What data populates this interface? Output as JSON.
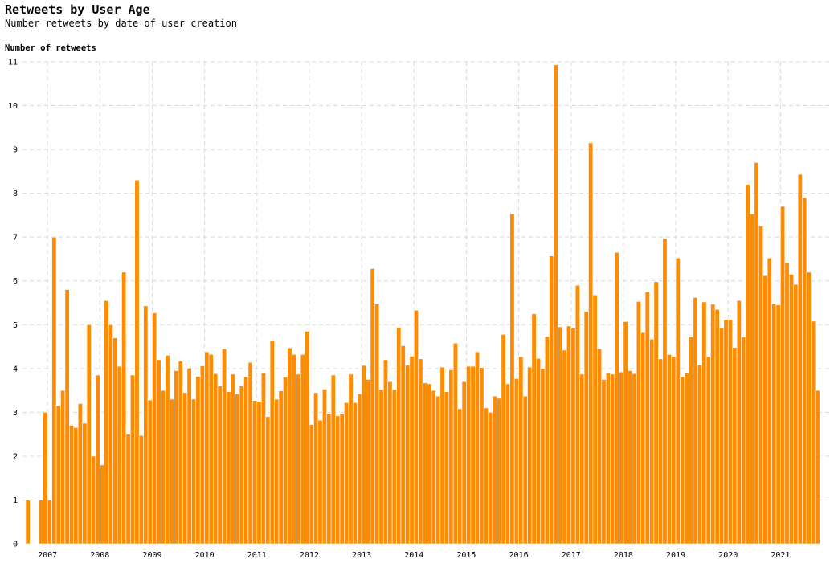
{
  "chart_data": {
    "type": "bar",
    "title": "Retweets by User Age",
    "subtitle": "Number retweets by date of user creation",
    "ylabel": "Number of retweets",
    "xlabel": "",
    "ylim": [
      0,
      11
    ],
    "yticks": [
      "0",
      "1",
      "2",
      "3",
      "4",
      "5",
      "6",
      "7",
      "8",
      "9",
      "10",
      "11"
    ],
    "xticks": [
      "2007",
      "2008",
      "2009",
      "2010",
      "2011",
      "2012",
      "2013",
      "2014",
      "2015",
      "2016",
      "2017",
      "2018",
      "2019",
      "2020",
      "2021"
    ],
    "grid": true,
    "bar_color": "#ff8c00",
    "x_start": "2006-08",
    "x_unit": "month",
    "values": [
      1,
      0,
      0,
      1,
      3,
      1,
      7,
      3.15,
      3.5,
      5.8,
      2.7,
      2.65,
      3.2,
      2.75,
      5,
      2,
      3.85,
      1.8,
      5.55,
      5,
      4.7,
      4.05,
      6.2,
      2.5,
      3.85,
      8.3,
      2.47,
      5.43,
      3.28,
      5.27,
      4.2,
      3.5,
      4.3,
      3.3,
      3.95,
      4.17,
      3.45,
      4.01,
      3.3,
      3.82,
      4.06,
      4.38,
      4.32,
      3.88,
      3.6,
      4.45,
      3.47,
      3.87,
      3.42,
      3.6,
      3.82,
      4.14,
      3.27,
      3.25,
      3.9,
      2.9,
      4.64,
      3.3,
      3.49,
      3.8,
      4.47,
      4.32,
      3.87,
      4.32,
      4.85,
      2.72,
      3.45,
      2.82,
      3.53,
      2.97,
      3.85,
      2.92,
      2.97,
      3.22,
      3.87,
      3.22,
      3.42,
      4.07,
      3.75,
      6.28,
      5.47,
      3.52,
      4.2,
      3.7,
      3.52,
      4.94,
      4.52,
      4.08,
      4.28,
      5.33,
      4.22,
      3.67,
      3.65,
      3.5,
      3.37,
      4.03,
      3.47,
      3.97,
      4.58,
      3.08,
      3.7,
      4.05,
      4.05,
      4.38,
      4.02,
      3.1,
      3.0,
      3.37,
      3.32,
      4.78,
      3.65,
      7.53,
      3.77,
      4.27,
      3.37,
      4.03,
      5.25,
      4.23,
      4.0,
      4.73,
      6.57,
      10.93,
      4.95,
      4.42,
      4.97,
      4.92,
      5.9,
      3.87,
      5.3,
      9.15,
      5.68,
      4.45,
      3.75,
      3.9,
      3.87,
      6.65,
      3.92,
      5.07,
      3.95,
      3.88,
      5.53,
      4.82,
      5.75,
      4.67,
      5.98,
      4.22,
      6.97,
      4.32,
      4.27,
      6.52,
      3.82,
      3.9,
      4.72,
      5.62,
      4.08,
      5.52,
      4.27,
      5.47,
      5.35,
      4.93,
      5.12,
      5.12,
      4.48,
      5.55,
      4.72,
      8.2,
      7.53,
      8.7,
      7.25,
      6.12,
      6.52,
      5.48,
      5.45,
      7.7,
      6.42,
      6.15,
      5.92,
      8.43,
      7.9,
      6.2,
      5.08,
      3.5
    ]
  }
}
